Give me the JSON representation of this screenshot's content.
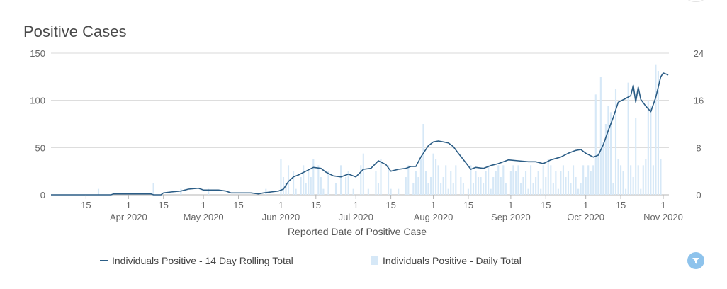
{
  "title": "Positive Cases",
  "colors": {
    "line": "#2b5d86",
    "bars": "#d6e8f7",
    "grid": "#d8d8d8",
    "filter_button": "#8ec3ec"
  },
  "icons": {
    "filter": "filter-funnel-icon"
  },
  "legend": {
    "line_label": "Individuals Positive - 14 Day Rolling Total",
    "bar_label": "Individuals Positive - Daily Total"
  },
  "chart_data": {
    "type": "line",
    "title": "Positive Cases",
    "xlabel": "Reported Date of Positive Case",
    "x_range": [
      "2020-03-01",
      "2020-11-01"
    ],
    "x_tick_labels": [
      {
        "date": "2020-03-15",
        "label": "15"
      },
      {
        "date": "2020-04-01",
        "label": "1",
        "sub": "Apr 2020"
      },
      {
        "date": "2020-04-15",
        "label": "15"
      },
      {
        "date": "2020-05-01",
        "label": "1",
        "sub": "May 2020"
      },
      {
        "date": "2020-05-15",
        "label": "15"
      },
      {
        "date": "2020-06-01",
        "label": "1",
        "sub": "Jun 2020"
      },
      {
        "date": "2020-06-15",
        "label": "15"
      },
      {
        "date": "2020-07-01",
        "label": "1",
        "sub": "Jul 2020"
      },
      {
        "date": "2020-07-15",
        "label": "15"
      },
      {
        "date": "2020-08-01",
        "label": "1",
        "sub": "Aug 2020"
      },
      {
        "date": "2020-08-15",
        "label": "15"
      },
      {
        "date": "2020-09-01",
        "label": "1",
        "sub": "Sep 2020"
      },
      {
        "date": "2020-09-15",
        "label": "15"
      },
      {
        "date": "2020-10-01",
        "label": "1",
        "sub": "Oct 2020"
      },
      {
        "date": "2020-10-15",
        "label": "15"
      },
      {
        "date": "2020-11-01",
        "label": "1",
        "sub": "Nov 2020"
      }
    ],
    "y_left": {
      "range": [
        0,
        150
      ],
      "ticks": [
        0,
        50,
        100,
        150
      ]
    },
    "y_right": {
      "range": [
        0,
        24
      ],
      "ticks": [
        0,
        8,
        16,
        24
      ]
    },
    "grid": true,
    "legend_position": "bottom",
    "series": [
      {
        "name": "Individuals Positive - 14 Day Rolling Total",
        "type": "line",
        "axis": "left",
        "points": [
          [
            "2020-03-01",
            0
          ],
          [
            "2020-03-25",
            0
          ],
          [
            "2020-03-26",
            1
          ],
          [
            "2020-04-01",
            1
          ],
          [
            "2020-04-10",
            1
          ],
          [
            "2020-04-11",
            0
          ],
          [
            "2020-04-14",
            0
          ],
          [
            "2020-04-15",
            2
          ],
          [
            "2020-04-18",
            3
          ],
          [
            "2020-04-22",
            4
          ],
          [
            "2020-04-25",
            6
          ],
          [
            "2020-04-29",
            7
          ],
          [
            "2020-05-01",
            5
          ],
          [
            "2020-05-07",
            5
          ],
          [
            "2020-05-10",
            4
          ],
          [
            "2020-05-12",
            2
          ],
          [
            "2020-05-16",
            2
          ],
          [
            "2020-05-20",
            2
          ],
          [
            "2020-05-23",
            1
          ],
          [
            "2020-05-25",
            2
          ],
          [
            "2020-05-28",
            3
          ],
          [
            "2020-05-31",
            4
          ],
          [
            "2020-06-02",
            6
          ],
          [
            "2020-06-04",
            14
          ],
          [
            "2020-06-06",
            19
          ],
          [
            "2020-06-08",
            21
          ],
          [
            "2020-06-11",
            25
          ],
          [
            "2020-06-14",
            29
          ],
          [
            "2020-06-17",
            28
          ],
          [
            "2020-06-19",
            24
          ],
          [
            "2020-06-22",
            20
          ],
          [
            "2020-06-25",
            19
          ],
          [
            "2020-06-28",
            22
          ],
          [
            "2020-07-01",
            19
          ],
          [
            "2020-07-04",
            27
          ],
          [
            "2020-07-07",
            28
          ],
          [
            "2020-07-10",
            36
          ],
          [
            "2020-07-13",
            32
          ],
          [
            "2020-07-15",
            25
          ],
          [
            "2020-07-18",
            27
          ],
          [
            "2020-07-21",
            28
          ],
          [
            "2020-07-23",
            30
          ],
          [
            "2020-07-25",
            30
          ],
          [
            "2020-07-27",
            40
          ],
          [
            "2020-07-30",
            52
          ],
          [
            "2020-08-01",
            56
          ],
          [
            "2020-08-03",
            57
          ],
          [
            "2020-08-05",
            56
          ],
          [
            "2020-08-07",
            55
          ],
          [
            "2020-08-09",
            51
          ],
          [
            "2020-08-11",
            44
          ],
          [
            "2020-08-14",
            34
          ],
          [
            "2020-08-16",
            27
          ],
          [
            "2020-08-18",
            29
          ],
          [
            "2020-08-21",
            28
          ],
          [
            "2020-08-24",
            31
          ],
          [
            "2020-08-27",
            33
          ],
          [
            "2020-08-31",
            37
          ],
          [
            "2020-09-04",
            36
          ],
          [
            "2020-09-08",
            35
          ],
          [
            "2020-09-11",
            35
          ],
          [
            "2020-09-14",
            33
          ],
          [
            "2020-09-17",
            37
          ],
          [
            "2020-09-21",
            40
          ],
          [
            "2020-09-24",
            44
          ],
          [
            "2020-09-27",
            47
          ],
          [
            "2020-09-29",
            48
          ],
          [
            "2020-10-01",
            44
          ],
          [
            "2020-10-04",
            40
          ],
          [
            "2020-10-06",
            42
          ],
          [
            "2020-10-08",
            53
          ],
          [
            "2020-10-10",
            68
          ],
          [
            "2020-10-12",
            82
          ],
          [
            "2020-10-14",
            98
          ],
          [
            "2020-10-17",
            102
          ],
          [
            "2020-10-19",
            105
          ],
          [
            "2020-10-20",
            116
          ],
          [
            "2020-10-21",
            98
          ],
          [
            "2020-10-22",
            114
          ],
          [
            "2020-10-23",
            101
          ],
          [
            "2020-10-25",
            94
          ],
          [
            "2020-10-27",
            88
          ],
          [
            "2020-10-29",
            103
          ],
          [
            "2020-10-31",
            125
          ],
          [
            "2020-11-01",
            129
          ],
          [
            "2020-11-02",
            128
          ],
          [
            "2020-11-03",
            127
          ]
        ]
      },
      {
        "name": "Individuals Positive - Daily Total",
        "type": "bar",
        "axis": "right",
        "points": [
          [
            "2020-03-20",
            1
          ],
          [
            "2020-04-11",
            2
          ],
          [
            "2020-04-22",
            1
          ],
          [
            "2020-05-03",
            1
          ],
          [
            "2020-05-26",
            1
          ],
          [
            "2020-06-01",
            6
          ],
          [
            "2020-06-02",
            3
          ],
          [
            "2020-06-03",
            2
          ],
          [
            "2020-06-04",
            5
          ],
          [
            "2020-06-06",
            4
          ],
          [
            "2020-06-07",
            1
          ],
          [
            "2020-06-09",
            3
          ],
          [
            "2020-06-10",
            5
          ],
          [
            "2020-06-11",
            2
          ],
          [
            "2020-06-12",
            4
          ],
          [
            "2020-06-13",
            3
          ],
          [
            "2020-06-14",
            6
          ],
          [
            "2020-06-16",
            5
          ],
          [
            "2020-06-17",
            3
          ],
          [
            "2020-06-18",
            1
          ],
          [
            "2020-06-20",
            4
          ],
          [
            "2020-06-23",
            2
          ],
          [
            "2020-06-25",
            5
          ],
          [
            "2020-06-27",
            3
          ],
          [
            "2020-06-28",
            4
          ],
          [
            "2020-06-30",
            1
          ],
          [
            "2020-07-03",
            5
          ],
          [
            "2020-07-04",
            7
          ],
          [
            "2020-07-06",
            1
          ],
          [
            "2020-07-09",
            4
          ],
          [
            "2020-07-10",
            2
          ],
          [
            "2020-07-11",
            6
          ],
          [
            "2020-07-14",
            5
          ],
          [
            "2020-07-15",
            1
          ],
          [
            "2020-07-18",
            1
          ],
          [
            "2020-07-21",
            3
          ],
          [
            "2020-07-22",
            5
          ],
          [
            "2020-07-24",
            2
          ],
          [
            "2020-07-25",
            4
          ],
          [
            "2020-07-26",
            3
          ],
          [
            "2020-07-27",
            6
          ],
          [
            "2020-07-28",
            12
          ],
          [
            "2020-07-29",
            4
          ],
          [
            "2020-07-30",
            2
          ],
          [
            "2020-07-31",
            3
          ],
          [
            "2020-08-01",
            7
          ],
          [
            "2020-08-02",
            6
          ],
          [
            "2020-08-03",
            5
          ],
          [
            "2020-08-04",
            2
          ],
          [
            "2020-08-05",
            3
          ],
          [
            "2020-08-06",
            5
          ],
          [
            "2020-08-07",
            1
          ],
          [
            "2020-08-08",
            4
          ],
          [
            "2020-08-09",
            2
          ],
          [
            "2020-08-10",
            5
          ],
          [
            "2020-08-12",
            3
          ],
          [
            "2020-08-13",
            2
          ],
          [
            "2020-08-15",
            1
          ],
          [
            "2020-08-16",
            5
          ],
          [
            "2020-08-17",
            2
          ],
          [
            "2020-08-18",
            4
          ],
          [
            "2020-08-19",
            3
          ],
          [
            "2020-08-20",
            3
          ],
          [
            "2020-08-21",
            2
          ],
          [
            "2020-08-22",
            4
          ],
          [
            "2020-08-23",
            5
          ],
          [
            "2020-08-24",
            1
          ],
          [
            "2020-08-25",
            3
          ],
          [
            "2020-08-26",
            4
          ],
          [
            "2020-08-27",
            5
          ],
          [
            "2020-08-28",
            3
          ],
          [
            "2020-08-29",
            5
          ],
          [
            "2020-08-30",
            2
          ],
          [
            "2020-09-01",
            4
          ],
          [
            "2020-09-02",
            5
          ],
          [
            "2020-09-03",
            4
          ],
          [
            "2020-09-04",
            5
          ],
          [
            "2020-09-05",
            2
          ],
          [
            "2020-09-06",
            3
          ],
          [
            "2020-09-07",
            4
          ],
          [
            "2020-09-08",
            1
          ],
          [
            "2020-09-09",
            5
          ],
          [
            "2020-09-10",
            2
          ],
          [
            "2020-09-11",
            3
          ],
          [
            "2020-09-12",
            4
          ],
          [
            "2020-09-13",
            1
          ],
          [
            "2020-09-14",
            5
          ],
          [
            "2020-09-15",
            3
          ],
          [
            "2020-09-16",
            6
          ],
          [
            "2020-09-17",
            5
          ],
          [
            "2020-09-18",
            2
          ],
          [
            "2020-09-19",
            4
          ],
          [
            "2020-09-20",
            1
          ],
          [
            "2020-09-21",
            4
          ],
          [
            "2020-09-22",
            5
          ],
          [
            "2020-09-23",
            3
          ],
          [
            "2020-09-24",
            4
          ],
          [
            "2020-09-25",
            2
          ],
          [
            "2020-09-26",
            5
          ],
          [
            "2020-09-27",
            3
          ],
          [
            "2020-09-28",
            1
          ],
          [
            "2020-09-29",
            2
          ],
          [
            "2020-09-30",
            5
          ],
          [
            "2020-10-01",
            3
          ],
          [
            "2020-10-02",
            5
          ],
          [
            "2020-10-03",
            4
          ],
          [
            "2020-10-04",
            5
          ],
          [
            "2020-10-05",
            17
          ],
          [
            "2020-10-06",
            7
          ],
          [
            "2020-10-07",
            20
          ],
          [
            "2020-10-08",
            9
          ],
          [
            "2020-10-09",
            12
          ],
          [
            "2020-10-10",
            15
          ],
          [
            "2020-10-11",
            14
          ],
          [
            "2020-10-12",
            2
          ],
          [
            "2020-10-13",
            18
          ],
          [
            "2020-10-14",
            6
          ],
          [
            "2020-10-15",
            5
          ],
          [
            "2020-10-16",
            4
          ],
          [
            "2020-10-17",
            1
          ],
          [
            "2020-10-18",
            19
          ],
          [
            "2020-10-19",
            5
          ],
          [
            "2020-10-20",
            3
          ],
          [
            "2020-10-21",
            13
          ],
          [
            "2020-10-22",
            5
          ],
          [
            "2020-10-23",
            1
          ],
          [
            "2020-10-24",
            5
          ],
          [
            "2020-10-25",
            6
          ],
          [
            "2020-10-26",
            16
          ],
          [
            "2020-10-27",
            15
          ],
          [
            "2020-10-28",
            5
          ],
          [
            "2020-10-29",
            22
          ],
          [
            "2020-10-30",
            21
          ],
          [
            "2020-10-31",
            6
          ]
        ]
      }
    ]
  }
}
